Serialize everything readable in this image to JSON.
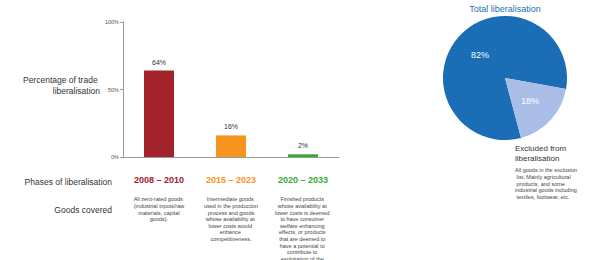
{
  "chart_data": [
    {
      "type": "bar",
      "ylabel": "Percentage of trade liberalisation",
      "xlabel": "Phases of liberalisation",
      "categories": [
        "2008 – 2010",
        "2015 – 2023",
        "2020 – 2033"
      ],
      "values": [
        64,
        16,
        2
      ],
      "value_labels": [
        "64%",
        "16%",
        "2%"
      ],
      "colors": [
        "#a3232a",
        "#f7941d",
        "#39a935"
      ],
      "ylim": [
        0,
        100
      ],
      "yticks": [
        {
          "value": 0,
          "label": "0%"
        },
        {
          "value": 50,
          "label": "50%"
        },
        {
          "value": 100,
          "label": "100%"
        }
      ],
      "grid": false,
      "data_labels": true,
      "annotations": {
        "heading": "Goods covered",
        "texts": [
          "All zero-rated goods (industrial inputs/raw materials, capital goods).",
          "Intermediate goods used in the production process and goods whose availability at lower costs would enhance competitiveness.",
          "Finished products whose availability at lower costs is deemed to have consumer welfare enhancing effects, or products that are deemed to have a potential to contribute to exploitation of the EPA."
        ]
      }
    },
    {
      "type": "pie",
      "categories": [
        "Total liberalisation",
        "Excluded from liberalisation"
      ],
      "values": [
        82,
        18
      ],
      "value_labels": [
        "82%",
        "18%"
      ],
      "colors": [
        "#1b6db5",
        "#a9bde6"
      ],
      "data_labels": true,
      "annotations": {
        "texts": [
          "All goods in the exclusion list. Mainly agricultural products, and some industrial goods including textiles, footwear, etc."
        ]
      }
    }
  ]
}
